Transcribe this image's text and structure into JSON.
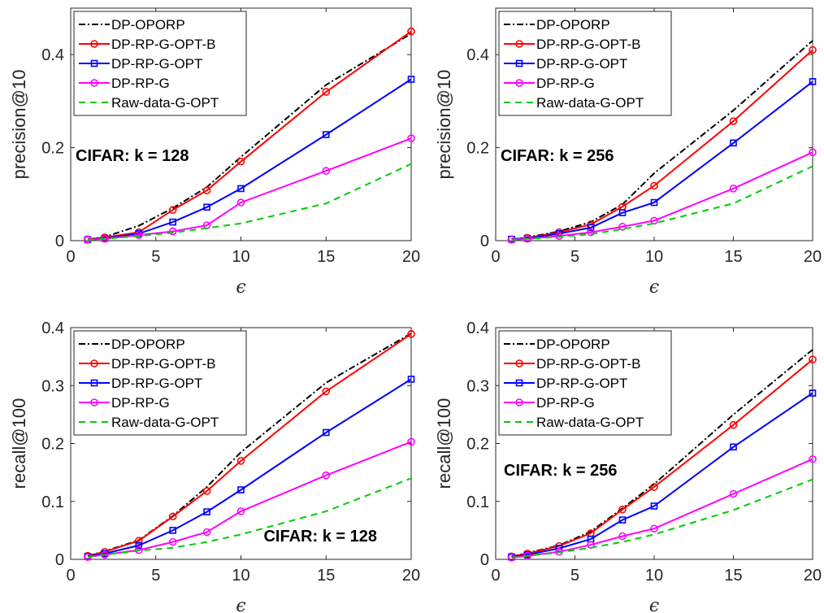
{
  "chart_data": [
    {
      "type": "line",
      "ylabel": "precision@10",
      "xlabel": "ϵ",
      "annotation": "CIFAR: k = 128",
      "annotation_position": "left-middle",
      "xlim": [
        0,
        20
      ],
      "ylim": [
        0,
        0.5
      ],
      "xticks": [
        0,
        5,
        10,
        15,
        20
      ],
      "yticks": [
        0,
        0.2,
        0.4
      ],
      "yticklabels": [
        "0",
        "0.2",
        "0.4"
      ],
      "legend_position": "top-left",
      "x": [
        1,
        2,
        4,
        6,
        8,
        10,
        15,
        20
      ],
      "series": [
        {
          "name": "DP-OPORP",
          "color": "#000000",
          "dash": "8,3,2,3",
          "marker": "none",
          "values": [
            0.003,
            0.008,
            0.032,
            0.07,
            0.115,
            0.18,
            0.335,
            0.445
          ]
        },
        {
          "name": "DP-RP-G-OPT-B",
          "color": "#ff0000",
          "dash": "",
          "marker": "circle",
          "values": [
            0.003,
            0.007,
            0.018,
            0.066,
            0.108,
            0.17,
            0.32,
            0.45
          ]
        },
        {
          "name": "DP-RP-G-OPT",
          "color": "#0000ff",
          "dash": "",
          "marker": "square",
          "values": [
            0.002,
            0.005,
            0.015,
            0.04,
            0.072,
            0.112,
            0.228,
            0.347
          ]
        },
        {
          "name": "DP-RP-G",
          "color": "#ff00ff",
          "dash": "",
          "marker": "circle",
          "values": [
            0.002,
            0.004,
            0.012,
            0.02,
            0.033,
            0.082,
            0.15,
            0.22
          ]
        },
        {
          "name": "Raw-data-G-OPT",
          "color": "#00cc00",
          "dash": "8,6",
          "marker": "none",
          "values": [
            0.002,
            0.004,
            0.01,
            0.017,
            0.027,
            0.037,
            0.08,
            0.165
          ]
        }
      ]
    },
    {
      "type": "line",
      "ylabel": "precision@10",
      "xlabel": "ϵ",
      "annotation": "CIFAR: k = 256",
      "annotation_position": "left-middle",
      "xlim": [
        0,
        20
      ],
      "ylim": [
        0,
        0.5
      ],
      "xticks": [
        0,
        5,
        10,
        15,
        20
      ],
      "yticks": [
        0,
        0.2,
        0.4
      ],
      "yticklabels": [
        "0",
        "0.2",
        "0.4"
      ],
      "legend_position": "top-left",
      "x": [
        1,
        2,
        4,
        6,
        8,
        10,
        15,
        20
      ],
      "series": [
        {
          "name": "DP-OPORP",
          "color": "#000000",
          "dash": "8,3,2,3",
          "marker": "none",
          "values": [
            0.003,
            0.007,
            0.02,
            0.04,
            0.078,
            0.145,
            0.28,
            0.43
          ]
        },
        {
          "name": "DP-RP-G-OPT-B",
          "color": "#ff0000",
          "dash": "",
          "marker": "circle",
          "values": [
            0.003,
            0.006,
            0.018,
            0.035,
            0.073,
            0.118,
            0.257,
            0.41
          ]
        },
        {
          "name": "DP-RP-G-OPT",
          "color": "#0000ff",
          "dash": "",
          "marker": "square",
          "values": [
            0.003,
            0.005,
            0.015,
            0.028,
            0.06,
            0.082,
            0.21,
            0.342
          ]
        },
        {
          "name": "DP-RP-G",
          "color": "#ff00ff",
          "dash": "",
          "marker": "circle",
          "values": [
            0.002,
            0.004,
            0.01,
            0.018,
            0.03,
            0.043,
            0.112,
            0.19
          ]
        },
        {
          "name": "Raw-data-G-OPT",
          "color": "#00cc00",
          "dash": "8,6",
          "marker": "none",
          "values": [
            0.002,
            0.004,
            0.008,
            0.014,
            0.025,
            0.037,
            0.08,
            0.16
          ]
        }
      ]
    },
    {
      "type": "line",
      "ylabel": "recall@100",
      "xlabel": "ϵ",
      "annotation": "CIFAR: k = 128",
      "annotation_position": "bottom-right",
      "xlim": [
        0,
        20
      ],
      "ylim": [
        0,
        0.4
      ],
      "xticks": [
        0,
        5,
        10,
        15,
        20
      ],
      "yticks": [
        0,
        0.1,
        0.2,
        0.3,
        0.4
      ],
      "yticklabels": [
        "0",
        "0.1",
        "0.2",
        "0.3",
        "0.4"
      ],
      "legend_position": "top-left",
      "x": [
        1,
        2,
        4,
        6,
        8,
        10,
        15,
        20
      ],
      "series": [
        {
          "name": "DP-OPORP",
          "color": "#000000",
          "dash": "8,3,2,3",
          "marker": "none",
          "values": [
            0.006,
            0.014,
            0.033,
            0.075,
            0.125,
            0.185,
            0.305,
            0.39
          ]
        },
        {
          "name": "DP-RP-G-OPT-B",
          "color": "#ff0000",
          "dash": "",
          "marker": "circle",
          "values": [
            0.006,
            0.013,
            0.032,
            0.074,
            0.118,
            0.17,
            0.29,
            0.389
          ]
        },
        {
          "name": "DP-RP-G-OPT",
          "color": "#0000ff",
          "dash": "",
          "marker": "square",
          "values": [
            0.005,
            0.01,
            0.024,
            0.05,
            0.082,
            0.12,
            0.219,
            0.311
          ]
        },
        {
          "name": "DP-RP-G",
          "color": "#ff00ff",
          "dash": "",
          "marker": "circle",
          "values": [
            0.004,
            0.008,
            0.016,
            0.03,
            0.047,
            0.083,
            0.145,
            0.203
          ]
        },
        {
          "name": "Raw-data-G-OPT",
          "color": "#00cc00",
          "dash": "8,6",
          "marker": "none",
          "values": [
            0.004,
            0.008,
            0.015,
            0.02,
            0.03,
            0.043,
            0.083,
            0.14
          ]
        }
      ]
    },
    {
      "type": "line",
      "ylabel": "recall@100",
      "xlabel": "ϵ",
      "annotation": "CIFAR: k = 256",
      "annotation_position": "left-middle",
      "xlim": [
        0,
        20
      ],
      "ylim": [
        0,
        0.4
      ],
      "xticks": [
        0,
        5,
        10,
        15,
        20
      ],
      "yticks": [
        0,
        0.1,
        0.2,
        0.3,
        0.4
      ],
      "yticklabels": [
        "0",
        "0.1",
        "0.2",
        "0.3",
        "0.4"
      ],
      "legend_position": "top-left",
      "x": [
        1,
        2,
        4,
        6,
        8,
        10,
        15,
        20
      ],
      "series": [
        {
          "name": "DP-OPORP",
          "color": "#000000",
          "dash": "8,3,2,3",
          "marker": "none",
          "values": [
            0.005,
            0.011,
            0.024,
            0.048,
            0.088,
            0.13,
            0.25,
            0.362
          ]
        },
        {
          "name": "DP-RP-G-OPT-B",
          "color": "#ff0000",
          "dash": "",
          "marker": "circle",
          "values": [
            0.005,
            0.01,
            0.023,
            0.045,
            0.086,
            0.125,
            0.232,
            0.345
          ]
        },
        {
          "name": "DP-RP-G-OPT",
          "color": "#0000ff",
          "dash": "",
          "marker": "square",
          "values": [
            0.004,
            0.008,
            0.019,
            0.035,
            0.068,
            0.092,
            0.194,
            0.287
          ]
        },
        {
          "name": "DP-RP-G",
          "color": "#ff00ff",
          "dash": "",
          "marker": "circle",
          "values": [
            0.003,
            0.006,
            0.013,
            0.025,
            0.04,
            0.053,
            0.113,
            0.173
          ]
        },
        {
          "name": "Raw-data-G-OPT",
          "color": "#00cc00",
          "dash": "8,6",
          "marker": "none",
          "values": [
            0.003,
            0.006,
            0.012,
            0.02,
            0.03,
            0.043,
            0.085,
            0.138
          ]
        }
      ]
    }
  ]
}
